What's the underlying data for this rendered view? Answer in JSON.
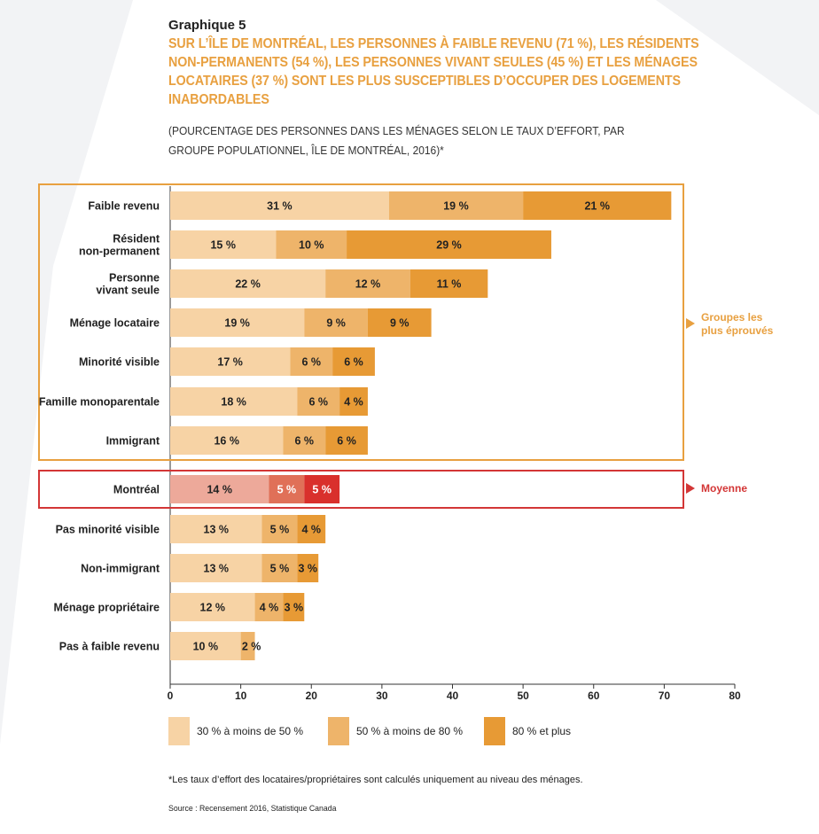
{
  "header": {
    "graph_label": "Graphique 5",
    "title": "SUR L’ÎLE DE MONTRÉAL, LES PERSONNES À FAIBLE REVENU (71 %), LES RÉSIDENTS NON-PERMANENTS (54 %), LES PERSONNES VIVANT SEULES (45 %) ET LES MÉNAGES LOCATAIRES (37 %) SONT LES PLUS SUSCEPTIBLES D’OCCUPER DES LOGEMENTS INABORDABLES",
    "subtitle": "(POURCENTAGE DES PERSONNES DANS LES MÉNAGES SELON LE TAUX D’EFFORT, PAR GROUPE POPULATIONNEL, ÎLE DE MONTRÉAL, 2016)*"
  },
  "colors": {
    "s1": "#f7d3a5",
    "s2": "#eeb46a",
    "s3": "#e79a35",
    "avg1": "#eda99a",
    "avg2": "#e07058",
    "avg3": "#d9302c",
    "group_box": "#e8a040",
    "avg_box": "#d33636"
  },
  "chart_data": {
    "type": "bar",
    "orientation": "horizontal",
    "stacked": true,
    "categories": [
      "Faible revenu",
      "Résident non-permanent",
      "Personne vivant seule",
      "Ménage locataire",
      "Minorité visible",
      "Famille monoparentale",
      "Immigrant",
      "Montréal",
      "Pas minorité visible",
      "Non-immigrant",
      "Ménage propriétaire",
      "Pas à faible revenu"
    ],
    "category_lines": [
      [
        "Faible revenu"
      ],
      [
        "Résident",
        "non-permanent"
      ],
      [
        "Personne",
        "vivant seule"
      ],
      [
        "Ménage locataire"
      ],
      [
        "Minorité visible"
      ],
      [
        "Famille monoparentale"
      ],
      [
        "Immigrant"
      ],
      [
        "Montréal"
      ],
      [
        "Pas minorité visible"
      ],
      [
        "Non-immigrant"
      ],
      [
        "Ménage propriétaire"
      ],
      [
        "Pas à faible revenu"
      ]
    ],
    "series": [
      {
        "name": "30 % à moins de 50 %",
        "values": [
          31,
          15,
          22,
          19,
          17,
          18,
          16,
          14,
          13,
          13,
          12,
          10
        ]
      },
      {
        "name": "50 % à moins de 80 %",
        "values": [
          19,
          10,
          12,
          9,
          6,
          6,
          6,
          5,
          5,
          5,
          4,
          2
        ]
      },
      {
        "name": "80 % et plus",
        "values": [
          21,
          29,
          11,
          9,
          6,
          4,
          6,
          5,
          4,
          3,
          3,
          0
        ]
      }
    ],
    "data_labels": [
      [
        "31 %",
        "19 %",
        "21 %"
      ],
      [
        "15 %",
        "10 %",
        "29 %"
      ],
      [
        "22 %",
        "12 %",
        "11 %"
      ],
      [
        "19 %",
        "9 %",
        "9 %"
      ],
      [
        "17 %",
        "6 %",
        "6 %"
      ],
      [
        "18 %",
        "6 %",
        "4 %"
      ],
      [
        "16 %",
        "6 %",
        "6 %"
      ],
      [
        "14 %",
        "5 %",
        "5 %"
      ],
      [
        "13 %",
        "5 %",
        "4 %"
      ],
      [
        "13 %",
        "5 %",
        "3 %"
      ],
      [
        "12 %",
        "4 %",
        "3 %"
      ],
      [
        "10 %",
        "2 %",
        ""
      ]
    ],
    "xlim": [
      0,
      80
    ],
    "xticks": [
      0,
      10,
      20,
      30,
      40,
      50,
      60,
      70,
      80
    ],
    "highlight_average_index": 7,
    "annotations": {
      "group": "Groupes les plus éprouvés",
      "group_lines": [
        "Groupes les",
        "plus éprouvés"
      ],
      "average": "Moyenne"
    }
  },
  "legend": {
    "items": [
      "30 % à moins de 50 %",
      "50 % à moins de 80 %",
      "80 % et plus"
    ]
  },
  "footnote": "*Les taux d’effort des locataires/propriétaires sont calculés uniquement au niveau des ménages.",
  "source": "Source : Recensement 2016, Statistique Canada"
}
